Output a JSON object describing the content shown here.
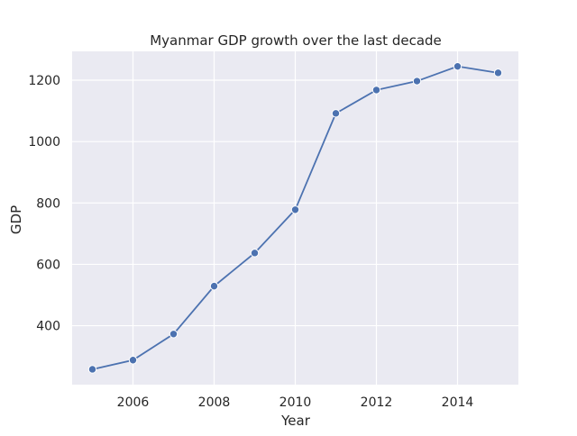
{
  "chart_data": {
    "type": "line",
    "title": "Myanmar GDP growth over the last decade",
    "xlabel": "Year",
    "ylabel": "GDP",
    "x": [
      2005,
      2006,
      2007,
      2008,
      2009,
      2010,
      2011,
      2012,
      2013,
      2014,
      2015
    ],
    "series": [
      {
        "values": [
          258,
          288,
          373,
          529,
          637,
          778,
          1092,
          1168,
          1197,
          1245,
          1224
        ]
      }
    ],
    "xlim": [
      2004.5,
      2015.5
    ],
    "ylim": [
      208,
      1294
    ],
    "x_ticks": [
      2006,
      2008,
      2010,
      2012,
      2014
    ],
    "y_ticks": [
      400,
      600,
      800,
      1000,
      1200
    ],
    "x_tick_labels": [
      "2006",
      "2008",
      "2010",
      "2012",
      "2014"
    ],
    "y_tick_labels": [
      "400",
      "600",
      "800",
      "1000",
      "1200"
    ],
    "grid": true,
    "marker": "circle",
    "colors": {
      "line": "#4c72b0",
      "marker_edge": "#ffffff",
      "plot_background": "#eaeaf2",
      "grid": "#ffffff",
      "page_background": "#ffffff"
    }
  }
}
